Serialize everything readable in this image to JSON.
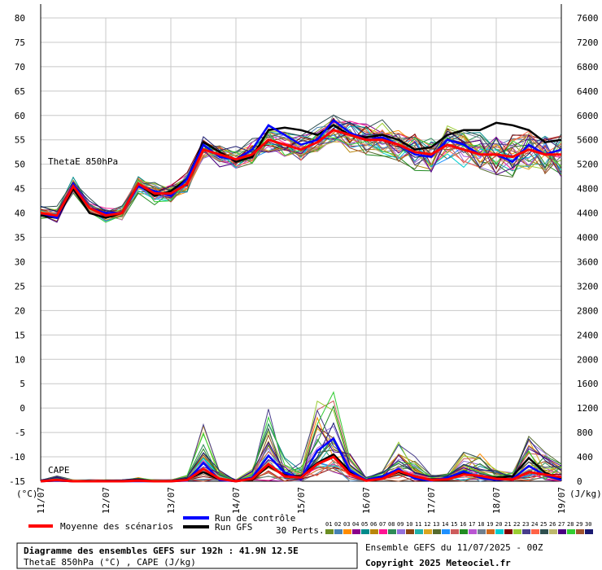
{
  "chart_data": {
    "type": "line",
    "left_axis": {
      "unit": "(°C)",
      "ticks": [
        80,
        75,
        70,
        65,
        60,
        55,
        50,
        45,
        40,
        35,
        30,
        25,
        20,
        15,
        10,
        5,
        0,
        -5,
        -10,
        -15
      ],
      "range": [
        -15,
        80
      ]
    },
    "right_axis": {
      "unit": "(J/kg)",
      "ticks": [
        7600,
        7200,
        6800,
        6400,
        6000,
        5600,
        5200,
        4800,
        4400,
        4000,
        3600,
        3200,
        2800,
        2400,
        2000,
        1600,
        1200,
        800,
        400,
        0
      ],
      "range": [
        0,
        7600
      ]
    },
    "x_labels": [
      "11/07",
      "12/07",
      "13/07",
      "14/07",
      "15/07",
      "16/07",
      "17/07",
      "18/07",
      "19/07"
    ],
    "x_range_hours": [
      0,
      192
    ],
    "panel_labels": {
      "thetae": "ThetaE 850hPa",
      "cape": "CAPE"
    },
    "thetae_series": {
      "x_hours": [
        0,
        6,
        12,
        18,
        24,
        30,
        36,
        42,
        48,
        54,
        60,
        66,
        72,
        78,
        84,
        90,
        96,
        102,
        108,
        114,
        120,
        126,
        132,
        138,
        144,
        150,
        156,
        162,
        168,
        174,
        180,
        186,
        192
      ],
      "mean": [
        40,
        39.5,
        45.5,
        41,
        39.5,
        40,
        46,
        44,
        44,
        46,
        53,
        52,
        51,
        52,
        55,
        54,
        53,
        54.5,
        57,
        56,
        55,
        55,
        54,
        52.5,
        52,
        54,
        53,
        52,
        52,
        51.5,
        53,
        52,
        52
      ],
      "control": [
        40,
        39,
        46,
        41,
        40,
        40,
        45.5,
        44.5,
        43.5,
        47,
        54,
        51.5,
        51,
        53,
        58,
        56,
        54,
        55,
        59,
        56.5,
        55,
        55.5,
        54,
        52,
        51.5,
        55,
        54,
        52,
        52,
        50.5,
        54,
        52,
        53
      ],
      "gfs": [
        39.5,
        39,
        45,
        40,
        39,
        40,
        46,
        43.5,
        44.5,
        47,
        54.5,
        52.5,
        50.5,
        51.5,
        57,
        57.5,
        57,
        56,
        58,
        56,
        55.5,
        56,
        55,
        53,
        53.5,
        56,
        57,
        57,
        58.5,
        58,
        57,
        54.5,
        55
      ]
    },
    "cape_series": {
      "x_hours": [
        0,
        6,
        12,
        18,
        24,
        30,
        36,
        42,
        48,
        54,
        60,
        66,
        72,
        78,
        84,
        90,
        96,
        102,
        108,
        114,
        120,
        126,
        132,
        138,
        144,
        150,
        156,
        162,
        168,
        174,
        180,
        186,
        192
      ],
      "mean": [
        0,
        20,
        0,
        0,
        0,
        0,
        10,
        0,
        0,
        20,
        200,
        40,
        0,
        40,
        280,
        80,
        60,
        280,
        400,
        120,
        10,
        40,
        170,
        80,
        20,
        30,
        110,
        90,
        40,
        30,
        150,
        110,
        70
      ],
      "control": [
        0,
        10,
        0,
        0,
        0,
        0,
        0,
        0,
        0,
        10,
        300,
        20,
        0,
        60,
        420,
        140,
        40,
        500,
        700,
        180,
        20,
        80,
        200,
        40,
        10,
        60,
        160,
        60,
        20,
        40,
        250,
        100,
        20
      ],
      "gfs": [
        0,
        10,
        0,
        0,
        0,
        0,
        20,
        0,
        0,
        30,
        150,
        30,
        0,
        30,
        250,
        100,
        80,
        300,
        440,
        160,
        20,
        60,
        150,
        60,
        30,
        40,
        120,
        80,
        60,
        80,
        380,
        140,
        40
      ]
    },
    "perturbation_count": 30,
    "perturbation_colors": [
      "#6b8e23",
      "#4682b4",
      "#ff8c00",
      "#8b008b",
      "#008b8b",
      "#b8860b",
      "#ff1493",
      "#2e8b57",
      "#9370db",
      "#8b4513",
      "#20b2aa",
      "#daa520",
      "#556b2f",
      "#1e90ff",
      "#cd5c5c",
      "#228b22",
      "#ba55d3",
      "#708090",
      "#d2691e",
      "#00ced1",
      "#800000",
      "#9acd32",
      "#483d8b",
      "#ff6347",
      "#2f4f4f",
      "#bdb76b",
      "#4b0082",
      "#32cd32",
      "#a0522d",
      "#191970"
    ],
    "legend": {
      "mean": {
        "label": "Moyenne des scénarios",
        "color": "#ff0000"
      },
      "control": {
        "label": "Run de contrôle",
        "color": "#0000ff"
      },
      "gfs": {
        "label": "Run GFS",
        "color": "#000000"
      },
      "perts_label": "30 Perts.",
      "swatch_labels": [
        "01",
        "02",
        "03",
        "04",
        "05",
        "06",
        "07",
        "08",
        "09",
        "10",
        "11",
        "12",
        "13",
        "14",
        "15",
        "16",
        "17",
        "18",
        "19",
        "20",
        "21",
        "22",
        "23",
        "24",
        "25",
        "26",
        "27",
        "28",
        "29",
        "30"
      ]
    }
  },
  "footer": {
    "title": "Diagramme des ensembles GEFS sur 192h : 41.9N 12.5E",
    "subtitle": "ThetaE 850hPa (°C) , CAPE (J/kg)",
    "run_info": "Ensemble GEFS du 11/07/2025 - 00Z",
    "copyright": "Copyright 2025 Meteociel.fr"
  }
}
